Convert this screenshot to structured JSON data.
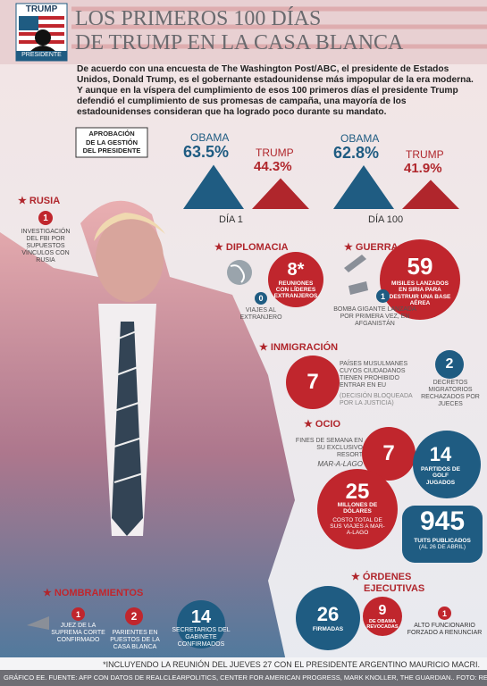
{
  "header": {
    "logo_top": "TRUMP",
    "logo_bottom": "PRESIDENTE",
    "title_lines": [
      "LOS PRIMEROS 100 DÍAS",
      "DE TRUMP EN LA CASA BLANCA"
    ]
  },
  "intro": "De acuerdo con una encuesta de The Washington Post/ABC, el presidente de Estados Unidos, Donald Trump, es el gobernante estadounidense más impopular de la era moderna. Y aunque en la víspera del cumplimiento de esos 100 primeros días el presidente Trump defendió el cumplimiento de sus promesas de campaña, una mayoría de los estadounidenses consideran que ha logrado poco durante su mandato.",
  "approval": {
    "label_lines": [
      "APROBACIÓN",
      "DE LA GESTIÓN",
      "DEL PRESIDENTE"
    ],
    "panels": [
      {
        "day": "DÍA 1",
        "obama_name": "OBAMA",
        "obama": {
          "value": 63.5,
          "label": "63.5%"
        },
        "trump_name": "TRUMP",
        "trump": {
          "value": 44.3,
          "label": "44.3%"
        }
      },
      {
        "day": "DÍA 100",
        "obama_name": "OBAMA",
        "obama": {
          "value": 62.8,
          "label": "62.8%"
        },
        "trump_name": "TRUMP",
        "trump": {
          "value": 41.9,
          "label": "41.9%"
        }
      }
    ]
  },
  "russia": {
    "title": "RUSIA",
    "number": 1,
    "text": "INVESTIGACIÓN DEL FBI POR SUPUESTOS VÍNCULOS CON RUSIA"
  },
  "diplomacy": {
    "title": "DIPLOMACIA",
    "meetings": {
      "number": "8*",
      "text": "REUNIONES CON LÍDERES EXTRANJEROS"
    },
    "trips": {
      "number": 0,
      "text": "VIAJES AL EXTRANJERO"
    }
  },
  "war": {
    "title": "GUERRA",
    "missiles": {
      "number": 59,
      "text": "MISILES LANZADOS EN SIRIA PARA DESTRUIR UNA BASE AÉREA"
    },
    "bomb": {
      "number": 1,
      "text": "BOMBA GIGANTE LANZADA POR PRIMERA VEZ, EN AFGANISTÁN"
    }
  },
  "immigration": {
    "title": "INMIGRACIÓN",
    "countries": {
      "number": 7,
      "text": "PAÍSES MUSULMANES CUYOS CIUDADANOS TIENEN PROHIBIDO ENTRAR EN EU",
      "note": "(DECISIÓN BLOQUEADA POR LA JUSTICIA)"
    },
    "decrees": {
      "number": 2,
      "text": "DECRETOS MIGRATORIOS RECHAZADOS POR JUECES"
    }
  },
  "leisure": {
    "title": "OCIO",
    "weekends": {
      "number": 7,
      "text": "FINES DE SEMANA EN SU EXCLUSIVO RESORT",
      "place": "MAR-A-LAGO"
    },
    "golf": {
      "number": 14,
      "text": "PARTIDOS DE GOLF JUGADOS"
    },
    "cost": {
      "number": 25,
      "unit": "MILLONES DE DÓLARES",
      "text": "COSTO TOTAL DE SUS VIAJES A MAR-A-LAGO"
    },
    "tweets": {
      "number": 945,
      "text": "TUITS PUBLICADOS",
      "note": "(AL 26 DE ABRIL)"
    }
  },
  "appointments": {
    "title": "NOMBRAMIENTOS",
    "judge": {
      "number": 1,
      "text": "JUEZ DE LA SUPREMA CORTE CONFIRMADO"
    },
    "relatives": {
      "number": 2,
      "text": "PARIENTES EN PUESTOS DE LA CASA BLANCA"
    },
    "cabinet": {
      "number": 14,
      "text": "SECRETARIOS DEL GABINETE CONFIRMADOS"
    }
  },
  "orders": {
    "title_lines": [
      "ÓRDENES",
      "EJECUTIVAS"
    ],
    "signed": {
      "number": 26,
      "text": "FIRMADAS"
    },
    "revoked": {
      "number": 9,
      "text": "DE OBAMA REVOCADAS"
    },
    "official": {
      "number": 1,
      "text": "ALTO FUNCIONARIO FORZADO A RENUNCIAR"
    }
  },
  "footnote": "*INCLUYENDO LA REUNIÓN DEL JUEVES 27 CON EL PRESIDENTE ARGENTINO MAURICIO MACRI.",
  "credits": "GRÁFICO EE. FUENTE: AFP CON DATOS DE REALCLEARPOLITICS, CENTER FOR AMERICAN PROGRESS, MARK KNOLLER, THE GUARDIAN.. FOTO: REUTERS."
}
